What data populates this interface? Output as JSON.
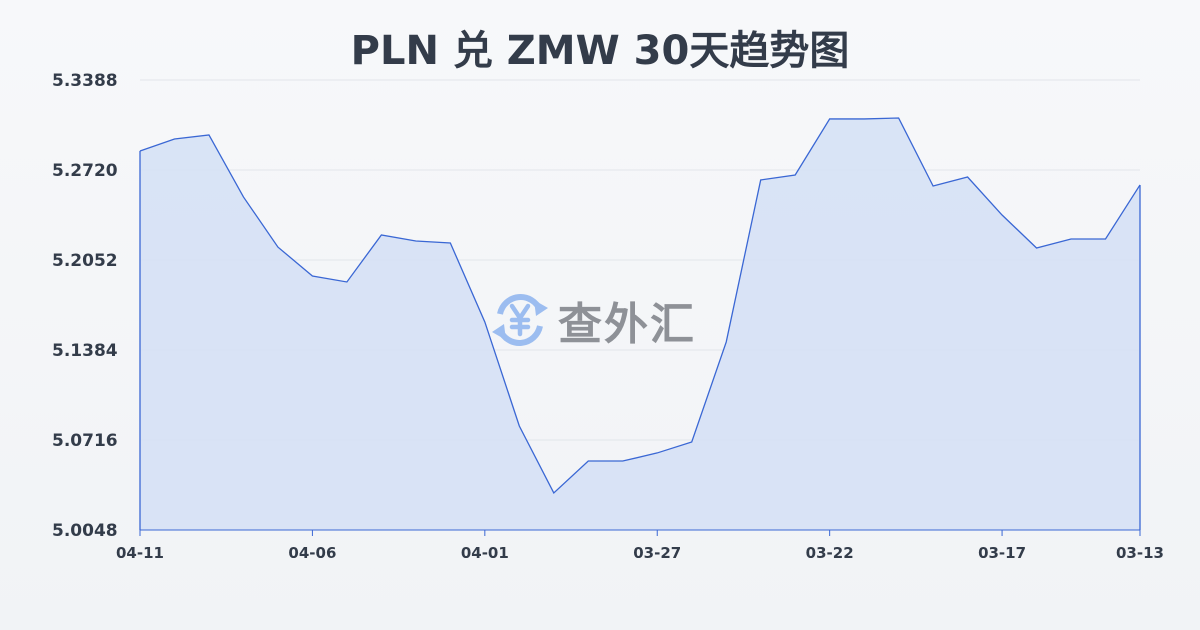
{
  "chart_data": {
    "type": "area",
    "title": "PLN 兑 ZMW 30天趋势图",
    "xlabel": "",
    "ylabel": "",
    "x": [
      "04-11",
      "04-10",
      "04-09",
      "04-08",
      "04-07",
      "04-06",
      "04-05",
      "04-04",
      "04-03",
      "04-02",
      "04-01",
      "03-31",
      "03-30",
      "03-29",
      "03-28",
      "03-27",
      "03-26",
      "03-25",
      "03-24",
      "03-23",
      "03-22",
      "03-21",
      "03-20",
      "03-19",
      "03-18",
      "03-17",
      "03-16",
      "03-15",
      "03-14",
      "03-13"
    ],
    "values": [
      5.2861,
      5.295,
      5.298,
      5.252,
      5.2148,
      5.1933,
      5.1889,
      5.2238,
      5.2193,
      5.2178,
      5.1592,
      5.082,
      5.0323,
      5.056,
      5.056,
      5.062,
      5.0701,
      5.1443,
      5.2646,
      5.2683,
      5.3099,
      5.3099,
      5.3106,
      5.2601,
      5.2668,
      5.2386,
      5.2141,
      5.2208,
      5.2208,
      5.2609
    ],
    "ylim": [
      5.0048,
      5.3388
    ],
    "yticks": [
      "5.3388",
      "5.2720",
      "5.2052",
      "5.1384",
      "5.0716",
      "5.0048"
    ],
    "xticks": [
      "04-11",
      "04-06",
      "04-01",
      "03-27",
      "03-22",
      "03-17",
      "03-13"
    ],
    "grid": true,
    "colors": {
      "line": "#3a67d4",
      "fill": "#d6e1f5",
      "grid": "#e2e5ea"
    }
  },
  "watermark": {
    "text": "查外汇",
    "icon": "yen-exchange-icon"
  }
}
